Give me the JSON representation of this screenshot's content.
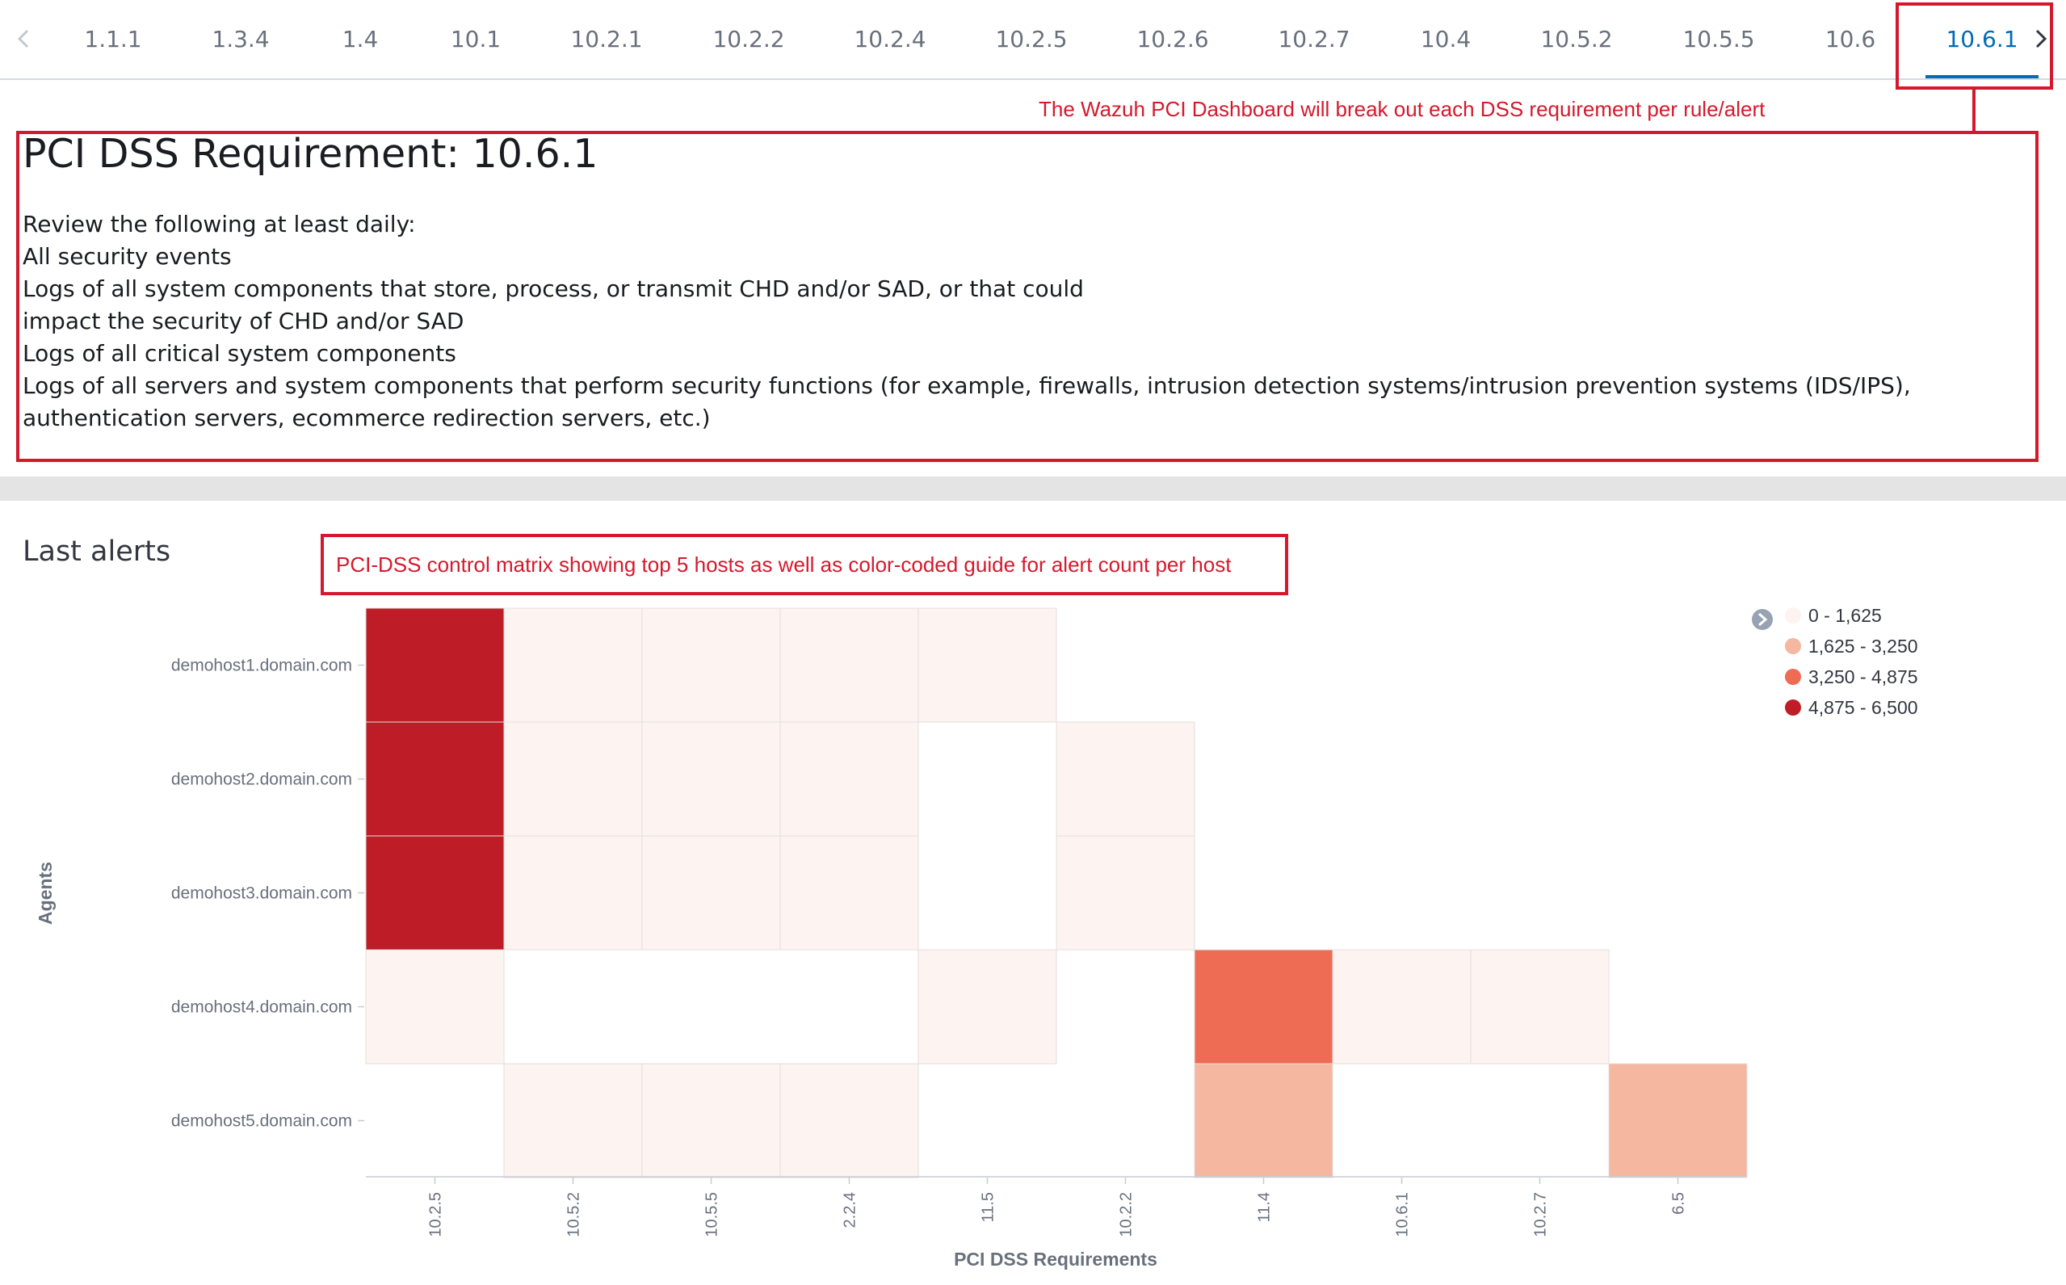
{
  "tabs": {
    "items": [
      "1.1.1",
      "1.3.4",
      "1.4",
      "10.1",
      "10.2.1",
      "10.2.2",
      "10.2.4",
      "10.2.5",
      "10.2.6",
      "10.2.7",
      "10.4",
      "10.5.2",
      "10.5.5",
      "10.6",
      "10.6.1"
    ],
    "active_index": 14,
    "prev_icon": "chevron-left-icon",
    "next_icon": "chevron-right-icon"
  },
  "annotations": {
    "top_note": "The Wazuh PCI Dashboard will break out each DSS requirement per rule/alert",
    "matrix_note": "PCI-DSS control matrix showing top 5 hosts as well as color-coded guide for alert count per host",
    "color": "#d5192c"
  },
  "requirement": {
    "title": "PCI DSS Requirement: 10.6.1",
    "lines": [
      "Review the following at least daily:",
      "All security events",
      "Logs of all system components that store, process, or transmit CHD and/or SAD, or that could",
      "impact the security of CHD and/or SAD",
      "Logs of all critical system components",
      "Logs of all servers and system components that perform security functions (for example, firewalls, intrusion detection systems/intrusion prevention systems (IDS/IPS), authentication servers, ecommerce redirection servers, etc.)"
    ]
  },
  "alerts": {
    "title": "Last alerts"
  },
  "chart_data": {
    "type": "heatmap",
    "x": [
      "10.2.5",
      "10.5.2",
      "10.5.5",
      "2.2.4",
      "11.5",
      "10.2.2",
      "11.4",
      "10.6.1",
      "10.2.7",
      "6.5"
    ],
    "y": [
      "demohost1.domain.com",
      "demohost2.domain.com",
      "demohost3.domain.com",
      "demohost4.domain.com",
      "demohost5.domain.com"
    ],
    "xlabel": "PCI DSS Requirements",
    "ylabel": "Agents",
    "values": [
      [
        6300,
        250,
        250,
        250,
        250,
        null,
        null,
        null,
        null,
        null
      ],
      [
        6300,
        250,
        250,
        250,
        null,
        250,
        null,
        null,
        null,
        null
      ],
      [
        6300,
        250,
        250,
        250,
        null,
        250,
        null,
        null,
        null,
        null
      ],
      [
        300,
        null,
        null,
        null,
        250,
        null,
        4500,
        250,
        250,
        null
      ],
      [
        null,
        250,
        250,
        250,
        null,
        null,
        2500,
        null,
        null,
        2500
      ]
    ],
    "legend": {
      "position": "top-right",
      "collapse_icon": "chevron-right-circle-icon",
      "ranges": [
        {
          "label": "0 - 1,625",
          "color": "#fdf3f0"
        },
        {
          "label": "1,625 - 3,250",
          "color": "#f5b7a0"
        },
        {
          "label": "3,250 - 4,875",
          "color": "#ee6b54"
        },
        {
          "label": "4,875 - 6,500",
          "color": "#be1d27"
        }
      ]
    }
  }
}
